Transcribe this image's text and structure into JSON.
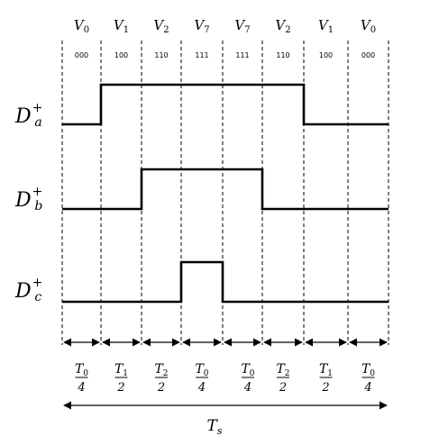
{
  "vectors": [
    {
      "v": "V",
      "sub": "0",
      "code": "000"
    },
    {
      "v": "V",
      "sub": "1",
      "code": "100"
    },
    {
      "v": "V",
      "sub": "2",
      "code": "110"
    },
    {
      "v": "V",
      "sub": "7",
      "code": "111"
    },
    {
      "v": "V",
      "sub": "7",
      "code": "111"
    },
    {
      "v": "V",
      "sub": "2",
      "code": "110"
    },
    {
      "v": "V",
      "sub": "1",
      "code": "100"
    },
    {
      "v": "V",
      "sub": "0",
      "code": "000"
    }
  ],
  "signals": [
    {
      "base": "D",
      "sub": "a",
      "sup": "+",
      "high_segments": [
        1,
        6
      ]
    },
    {
      "base": "D",
      "sub": "b",
      "sup": "+",
      "high_segments": [
        2,
        5
      ]
    },
    {
      "base": "D",
      "sub": "c",
      "sup": "+",
      "high_segments": [
        3,
        4
      ]
    }
  ],
  "durations": [
    {
      "num": "T",
      "num_sub": "0",
      "den": "4"
    },
    {
      "num": "T",
      "num_sub": "1",
      "den": "2"
    },
    {
      "num": "T",
      "num_sub": "2",
      "den": "2"
    },
    {
      "num": "T",
      "num_sub": "0",
      "den": "4"
    },
    {
      "num": "T",
      "num_sub": "0",
      "den": "4"
    },
    {
      "num": "T",
      "num_sub": "2",
      "den": "2"
    },
    {
      "num": "T",
      "num_sub": "1",
      "den": "2"
    },
    {
      "num": "T",
      "num_sub": "0",
      "den": "4"
    }
  ],
  "period_label": {
    "base": "T",
    "sub": "s"
  }
}
